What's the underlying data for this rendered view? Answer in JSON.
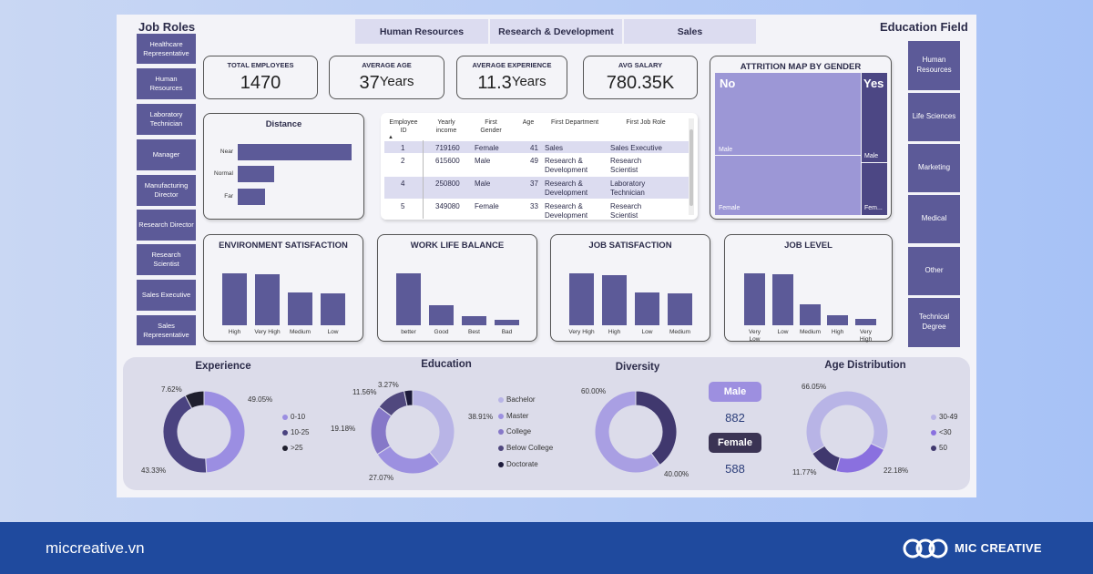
{
  "job_roles": {
    "heading": "Job Roles",
    "items": [
      "Healthcare Representative",
      "Human Resources",
      "Laboratory Technician",
      "Manager",
      "Manufacturing Director",
      "Research Director",
      "Research Scientist",
      "Sales Executive",
      "Sales Representative"
    ]
  },
  "education_field": {
    "heading": "Education Field",
    "items": [
      "Human Resources",
      "Life Sciences",
      "Marketing",
      "Medical",
      "Other",
      "Technical Degree"
    ]
  },
  "department_tabs": [
    "Human Resources",
    "Research & Development",
    "Sales"
  ],
  "kpis": {
    "total_employees": {
      "label": "TOTAL EMPLOYEES",
      "value": "1470"
    },
    "average_age": {
      "label": "AVERAGE AGE",
      "value": "37",
      "unit": "Years"
    },
    "average_experience": {
      "label": "AVERAGE EXPERIENCE",
      "value": "11.3",
      "unit": "Years"
    },
    "avg_salary": {
      "label": "AVG SALARY",
      "value": "780.35K"
    }
  },
  "attrition": {
    "title": "ATTRITION MAP BY GENDER",
    "no": "No",
    "yes": "Yes",
    "male": "Male",
    "female": "Female",
    "fem_short": "Fem..."
  },
  "employee_table": {
    "headers": [
      "Employee ID",
      "Yearly income",
      "First Gender",
      "Age",
      "First Department",
      "First Job Role"
    ],
    "rows": [
      [
        "1",
        "719160",
        "Female",
        "41",
        "Sales",
        "Sales Executive"
      ],
      [
        "2",
        "615600",
        "Male",
        "49",
        "Research & Development",
        "Research Scientist"
      ],
      [
        "4",
        "250800",
        "Male",
        "37",
        "Research & Development",
        "Laboratory Technician"
      ],
      [
        "5",
        "349080",
        "Female",
        "33",
        "Research & Development",
        "Research Scientist"
      ]
    ]
  },
  "chart_data": [
    {
      "type": "bar",
      "title": "Distance",
      "orientation": "horizontal",
      "categories": [
        "Near",
        "Normal",
        "Far"
      ],
      "values": [
        100,
        32,
        24
      ]
    },
    {
      "type": "bar",
      "title": "ENVIRONMENT SATISFACTION",
      "categories": [
        "High",
        "Very High",
        "Medium",
        "Low"
      ],
      "values": [
        100,
        98,
        63,
        62
      ]
    },
    {
      "type": "bar",
      "title": "WORK LIFE BALANCE",
      "categories": [
        "better",
        "Good",
        "Best",
        "Bad"
      ],
      "values": [
        100,
        39,
        17,
        10
      ]
    },
    {
      "type": "bar",
      "title": "JOB SATISFACTION",
      "categories": [
        "Very High",
        "High",
        "Low",
        "Medium"
      ],
      "values": [
        100,
        97,
        63,
        62
      ]
    },
    {
      "type": "bar",
      "title": "JOB LEVEL",
      "categories": [
        "Very Low",
        "Low",
        "Medium",
        "High",
        "Very High"
      ],
      "values": [
        100,
        98,
        41,
        19,
        12
      ]
    },
    {
      "type": "pie",
      "title": "Experience",
      "categories": [
        "0-10",
        "10-25",
        ">25"
      ],
      "values": [
        49.05,
        43.33,
        7.62
      ],
      "labels": [
        "49.05%",
        "43.33%",
        "7.62%"
      ]
    },
    {
      "type": "pie",
      "title": "Education",
      "categories": [
        "Bachelor",
        "Master",
        "College",
        "Below College",
        "Doctorate"
      ],
      "values": [
        38.91,
        27.07,
        19.18,
        11.56,
        3.27
      ],
      "labels": [
        "38.91%",
        "27.07%",
        "19.18%",
        "11.56%",
        "3.27%"
      ]
    },
    {
      "type": "pie",
      "title": "Diversity",
      "categories": [
        "Male",
        "Female"
      ],
      "values": [
        60.0,
        40.0
      ],
      "labels": [
        "60.00%",
        "40.00%"
      ]
    },
    {
      "type": "pie",
      "title": "Age Distribution",
      "categories": [
        "30-49",
        "<30",
        "50"
      ],
      "values": [
        66.05,
        22.18,
        11.77
      ],
      "labels": [
        "66.05%",
        "22.18%",
        "11.77%"
      ]
    }
  ],
  "diversity": {
    "male_label": "Male",
    "male_count": "882",
    "female_label": "Female",
    "female_count": "588"
  },
  "colors": {
    "accent": "#5c5a98",
    "light": "#b8b4e6",
    "mid": "#8f86da",
    "dark": "#40386e",
    "footer": "#1f4a9e"
  },
  "footer": {
    "site": "miccreative.vn",
    "brand": "MIC CREATIVE"
  }
}
